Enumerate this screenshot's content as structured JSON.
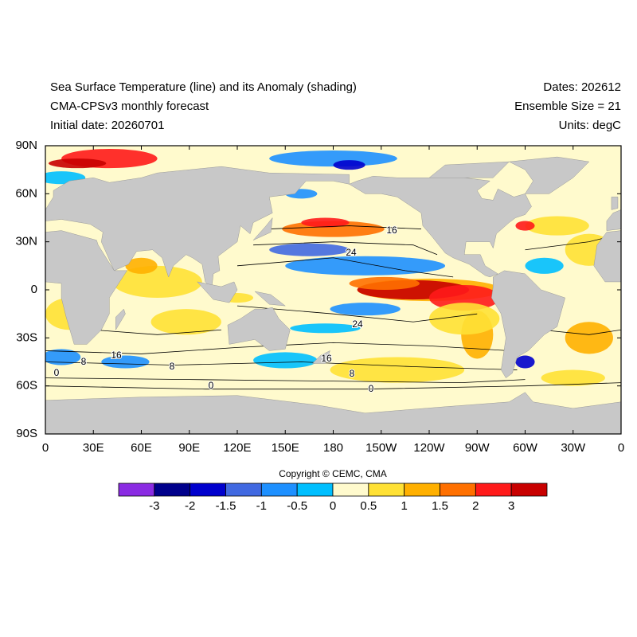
{
  "header": {
    "title": "Sea Surface Temperature (line) and its Anomaly (shading)",
    "subtitle": "CMA-CPSv3 monthly forecast",
    "initial_date": "Initial date: 20260701",
    "dates": "Dates: 202612",
    "ensemble": "Ensemble Size = 21",
    "units": "Units: degC"
  },
  "map": {
    "xlim": [
      0,
      360
    ],
    "ylim": [
      -90,
      90
    ],
    "xticks": [
      0,
      {
        "value": 30,
        "label": "30E"
      },
      {
        "value": 60,
        "label": "60E"
      },
      {
        "value": 90,
        "label": "90E"
      },
      {
        "value": 120,
        "label": "120E"
      },
      {
        "value": 150,
        "label": "150E"
      },
      180,
      {
        "value": 210,
        "label": "150W"
      },
      {
        "value": 240,
        "label": "120W"
      },
      {
        "value": 270,
        "label": "90W"
      },
      {
        "value": 300,
        "label": "60W"
      },
      {
        "value": 330,
        "label": "30W"
      },
      {
        "value": 360,
        "label": "0"
      }
    ],
    "yticks": [
      {
        "value": 90,
        "label": "90N"
      },
      {
        "value": 60,
        "label": "60N"
      },
      {
        "value": 30,
        "label": "30N"
      },
      0,
      {
        "value": -30,
        "label": "30S"
      },
      {
        "value": -60,
        "label": "60S"
      },
      {
        "value": -90,
        "label": "90S"
      }
    ],
    "contour_labels": [
      16,
      24,
      24,
      16,
      8,
      8,
      16,
      8,
      0,
      0,
      0
    ]
  },
  "colorbar": {
    "levels": [
      -3,
      -2,
      -1.5,
      -1,
      -0.5,
      0,
      0.5,
      1,
      1.5,
      2,
      3
    ],
    "colors": [
      "#8a2be2",
      "#00008b",
      "#0000cd",
      "#4169e1",
      "#1e90ff",
      "#00bfff",
      "#fffacd",
      "#ffe135",
      "#ffb000",
      "#ff7000",
      "#ff1a1a",
      "#c80000"
    ]
  },
  "copyright": "Copyright © CEMC, CMA"
}
